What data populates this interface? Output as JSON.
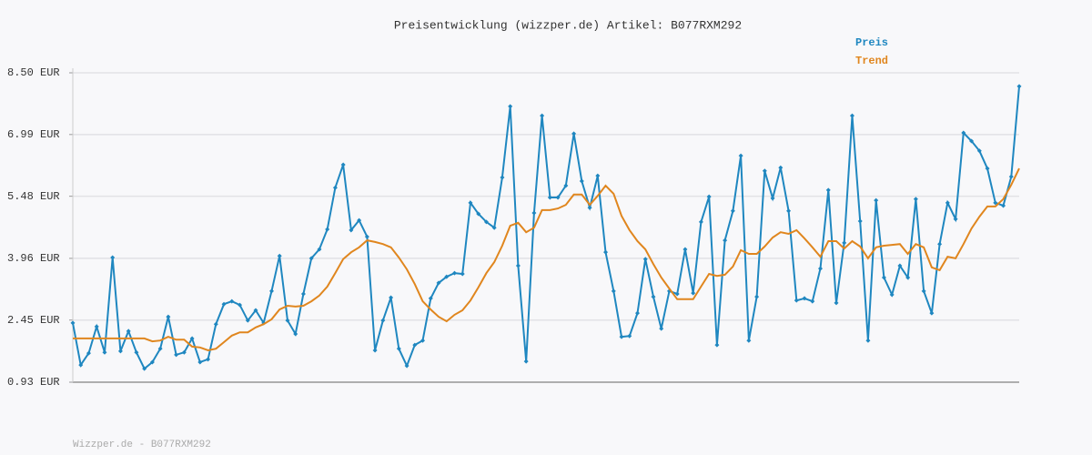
{
  "chart_data": {
    "type": "line",
    "title": "Preisentwicklung (wizzper.de) Artikel: B077RXM292",
    "footer": "Wizzper.de - B077RXM292",
    "ylim": [
      0.93,
      8.5
    ],
    "yticks": [
      {
        "value": 0.93,
        "label": "0.93 EUR"
      },
      {
        "value": 2.45,
        "label": "2.45 EUR"
      },
      {
        "value": 3.96,
        "label": "3.96 EUR"
      },
      {
        "value": 5.48,
        "label": "5.48 EUR"
      },
      {
        "value": 6.99,
        "label": "6.99 EUR"
      },
      {
        "value": 8.5,
        "label": "8.50 EUR"
      }
    ],
    "grid": true,
    "legend": "top-right",
    "series": [
      {
        "name": "Preis",
        "color": "#1f87c0",
        "markers": true,
        "values": [
          2.38,
          1.35,
          1.64,
          2.29,
          1.66,
          3.98,
          1.69,
          2.18,
          1.66,
          1.26,
          1.42,
          1.75,
          2.53,
          1.6,
          1.66,
          2.0,
          1.42,
          1.49,
          2.35,
          2.84,
          2.91,
          2.82,
          2.44,
          2.69,
          2.38,
          3.16,
          4.02,
          2.44,
          2.11,
          3.09,
          3.96,
          4.18,
          4.67,
          5.69,
          6.25,
          4.65,
          4.89,
          4.49,
          1.71,
          2.44,
          3.0,
          1.75,
          1.33,
          1.84,
          1.95,
          2.98,
          3.36,
          3.51,
          3.6,
          3.58,
          5.32,
          5.05,
          4.85,
          4.71,
          5.94,
          7.68,
          3.78,
          1.44,
          5.07,
          7.45,
          5.45,
          5.45,
          5.74,
          7.01,
          5.85,
          5.2,
          5.98,
          4.11,
          3.16,
          2.04,
          2.06,
          2.62,
          3.94,
          3.02,
          2.24,
          3.16,
          3.09,
          4.18,
          3.11,
          4.85,
          5.47,
          1.84,
          4.4,
          5.12,
          6.47,
          1.95,
          3.02,
          6.1,
          5.43,
          6.18,
          5.12,
          2.93,
          2.98,
          2.91,
          3.71,
          5.63,
          2.87,
          4.34,
          7.45,
          4.87,
          1.95,
          5.38,
          3.49,
          3.07,
          3.78,
          3.49,
          5.41,
          3.16,
          2.62,
          4.31,
          5.32,
          4.92,
          7.03,
          6.83,
          6.59,
          6.16,
          5.32,
          5.25,
          5.96,
          8.17
        ]
      },
      {
        "name": "Trend",
        "color": "#e0861e",
        "markers": false,
        "values": [
          2.0,
          2.0,
          2.0,
          2.0,
          2.0,
          2.0,
          2.0,
          2.0,
          2.0,
          2.0,
          1.93,
          1.95,
          2.04,
          1.97,
          1.97,
          1.8,
          1.78,
          1.71,
          1.75,
          1.91,
          2.07,
          2.15,
          2.15,
          2.27,
          2.35,
          2.47,
          2.71,
          2.8,
          2.78,
          2.8,
          2.91,
          3.05,
          3.27,
          3.6,
          3.94,
          4.11,
          4.23,
          4.4,
          4.36,
          4.31,
          4.23,
          3.98,
          3.69,
          3.33,
          2.91,
          2.71,
          2.53,
          2.42,
          2.58,
          2.69,
          2.93,
          3.25,
          3.6,
          3.87,
          4.27,
          4.76,
          4.83,
          4.6,
          4.71,
          5.14,
          5.14,
          5.18,
          5.27,
          5.52,
          5.52,
          5.27,
          5.49,
          5.74,
          5.54,
          5.0,
          4.65,
          4.38,
          4.18,
          3.82,
          3.49,
          3.22,
          2.96,
          2.96,
          2.96,
          3.27,
          3.58,
          3.53,
          3.56,
          3.76,
          4.16,
          4.07,
          4.07,
          4.25,
          4.47,
          4.6,
          4.56,
          4.65,
          4.45,
          4.23,
          4.0,
          4.38,
          4.38,
          4.2,
          4.38,
          4.25,
          3.96,
          4.23,
          4.27,
          4.29,
          4.31,
          4.07,
          4.31,
          4.23,
          3.74,
          3.67,
          4.0,
          3.96,
          4.31,
          4.69,
          4.98,
          5.23,
          5.23,
          5.41,
          5.76,
          6.16
        ]
      }
    ]
  }
}
